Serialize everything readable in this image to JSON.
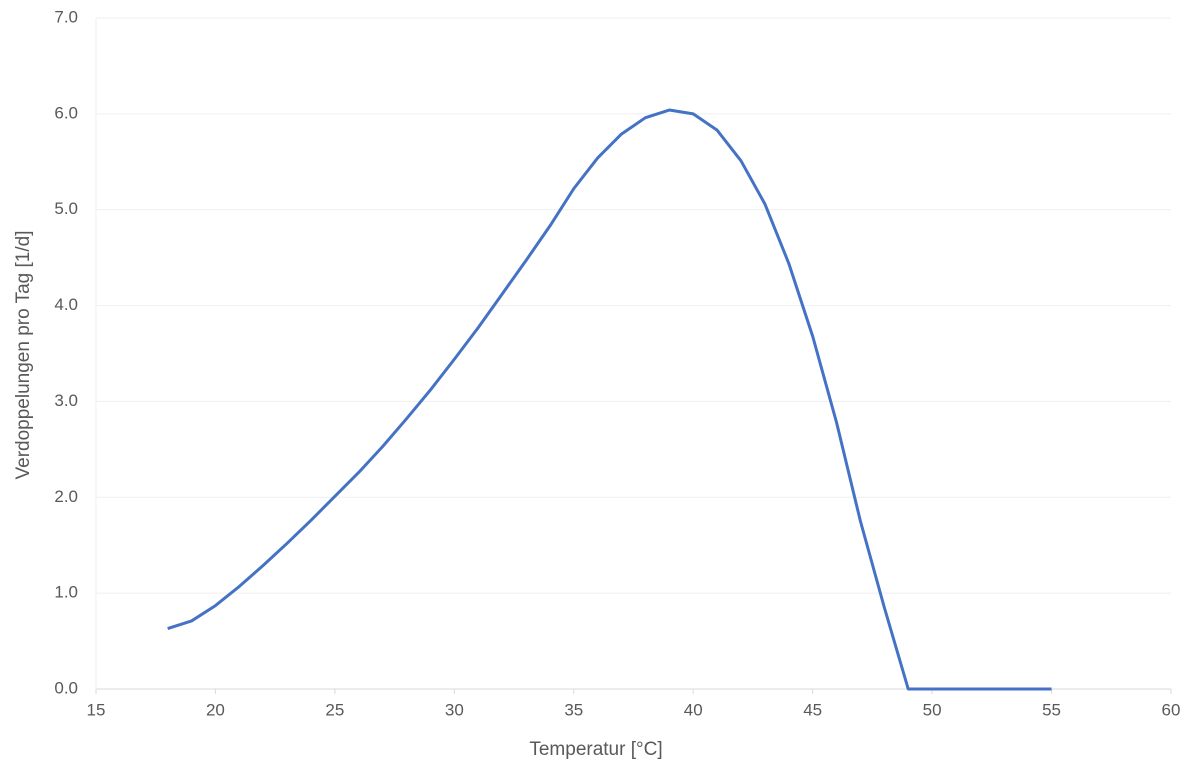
{
  "chart_data": {
    "type": "line",
    "x_label": "Temperatur [°C]",
    "y_label": "Verdoppelungen pro Tag [1/d]",
    "x": [
      18,
      19,
      20,
      21,
      22,
      23,
      24,
      25,
      26,
      27,
      28,
      29,
      30,
      31,
      32,
      33,
      34,
      35,
      36,
      37,
      38,
      39,
      40,
      41,
      42,
      43,
      44,
      45,
      46,
      47,
      48,
      49,
      50,
      51,
      52,
      53,
      54,
      55
    ],
    "series": [
      {
        "name": "Verdoppelungen pro Tag",
        "color": "#4472c4",
        "values": [
          0.63,
          0.71,
          0.87,
          1.07,
          1.29,
          1.52,
          1.76,
          2.01,
          2.26,
          2.53,
          2.82,
          3.12,
          3.44,
          3.77,
          4.12,
          4.47,
          4.83,
          5.22,
          5.54,
          5.79,
          5.96,
          6.04,
          6.0,
          5.83,
          5.51,
          5.06,
          4.44,
          3.68,
          2.78,
          1.75,
          0.85,
          0,
          0,
          0,
          0,
          0,
          0,
          0
        ]
      }
    ],
    "xlim": [
      15,
      60
    ],
    "xticks": [
      15,
      20,
      25,
      30,
      35,
      40,
      45,
      50,
      55,
      60
    ],
    "ylim": [
      0,
      7
    ],
    "yticks": [
      {
        "value": 0,
        "label": "0.0"
      },
      {
        "value": 1,
        "label": "1.0"
      },
      {
        "value": 2,
        "label": "2.0"
      },
      {
        "value": 3,
        "label": "3.0"
      },
      {
        "value": 4,
        "label": "4.0"
      },
      {
        "value": 5,
        "label": "5.0"
      },
      {
        "value": 6,
        "label": "6.0"
      },
      {
        "value": 7,
        "label": "7.0"
      }
    ],
    "grid": true
  }
}
